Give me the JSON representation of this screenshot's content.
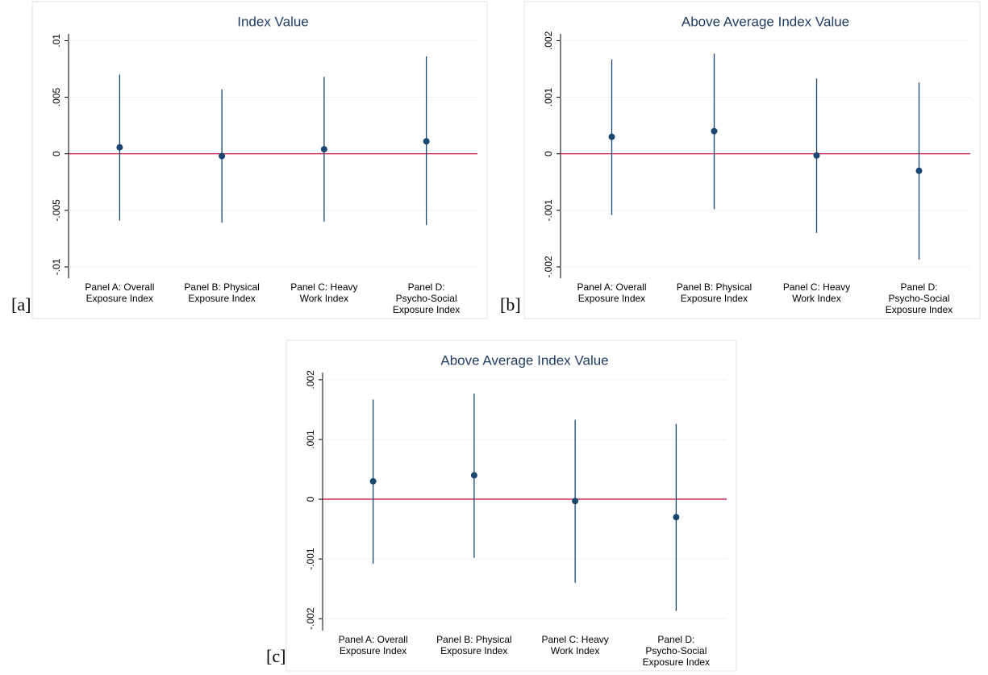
{
  "chart_data": [
    {
      "type": "errorbar",
      "label": "[a]",
      "title": "Index Value",
      "categories": [
        [
          "Panel A: Overall",
          "Exposure Index"
        ],
        [
          "Panel B: Physical",
          "Exposure Index"
        ],
        [
          "Panel C: Heavy",
          "Work Index"
        ],
        [
          "Panel D:",
          "Psycho-Social",
          "Exposure Index"
        ]
      ],
      "values": [
        0.00057,
        -0.0002,
        0.0004,
        0.0011
      ],
      "lower": [
        -0.0059,
        -0.0061,
        -0.006,
        -0.0063
      ],
      "upper": [
        0.007,
        0.0057,
        0.0068,
        0.0086
      ],
      "color": "#1a476f",
      "refline": 0,
      "refline_color": "#c10534",
      "grid": true,
      "ylim": [
        -0.011,
        0.0106
      ],
      "yticks": [
        {
          "value": -0.01,
          "label": "-.01"
        },
        {
          "value": -0.005,
          "label": "-.005"
        },
        0,
        {
          "value": 0.005,
          "label": ".005"
        },
        {
          "value": 0.01,
          "label": ".01"
        }
      ]
    },
    {
      "type": "errorbar",
      "label": "[b]",
      "title": "Above Average Index Value",
      "categories": [
        [
          "Panel A: Overall",
          "Exposure Index"
        ],
        [
          "Panel B: Physical",
          "Exposure Index"
        ],
        [
          "Panel C: Heavy",
          "Work Index"
        ],
        [
          "Panel D:",
          "Psycho-Social",
          "Exposure Index"
        ]
      ],
      "values": [
        0.0003,
        0.0004,
        -3e-05,
        -0.0003
      ],
      "lower": [
        -0.00108,
        -0.00098,
        -0.0014,
        -0.00187
      ],
      "upper": [
        0.00167,
        0.00177,
        0.00133,
        0.00126
      ],
      "color": "#1a476f",
      "refline": 0,
      "refline_color": "#c10534",
      "grid": true,
      "ylim": [
        -0.0022,
        0.00212
      ],
      "yticks": [
        {
          "value": -0.002,
          "label": "-.002"
        },
        {
          "value": -0.001,
          "label": "-.001"
        },
        0,
        {
          "value": 0.001,
          "label": ".001"
        },
        {
          "value": 0.002,
          "label": ".002"
        }
      ]
    },
    {
      "type": "errorbar",
      "label": "[c]",
      "title": "Above Average Index Value",
      "categories": [
        [
          "Panel A: Overall",
          "Exposure Index"
        ],
        [
          "Panel B: Physical",
          "Exposure Index"
        ],
        [
          "Panel C: Heavy",
          "Work Index"
        ],
        [
          "Panel D:",
          "Psycho-Social",
          "Exposure Index"
        ]
      ],
      "values": [
        0.0003,
        0.0004,
        -3e-05,
        -0.0003
      ],
      "lower": [
        -0.00108,
        -0.00098,
        -0.0014,
        -0.00187
      ],
      "upper": [
        0.00167,
        0.00177,
        0.00133,
        0.00126
      ],
      "color": "#1a476f",
      "refline": 0,
      "refline_color": "#c10534",
      "grid": true,
      "ylim": [
        -0.0022,
        0.00212
      ],
      "yticks": [
        {
          "value": -0.002,
          "label": "-.002"
        },
        {
          "value": -0.001,
          "label": "-.001"
        },
        0,
        {
          "value": 0.001,
          "label": ".001"
        },
        {
          "value": 0.002,
          "label": ".002"
        }
      ]
    }
  ]
}
